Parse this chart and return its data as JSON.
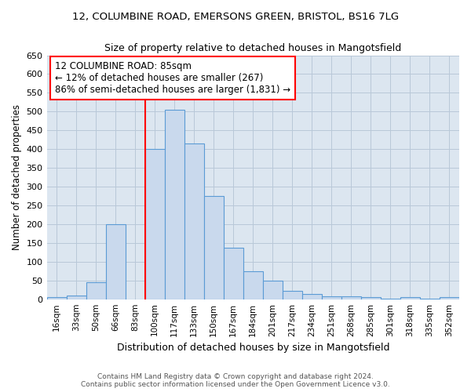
{
  "title_line1": "12, COLUMBINE ROAD, EMERSONS GREEN, BRISTOL, BS16 7LG",
  "title_line2": "Size of property relative to detached houses in Mangotsfield",
  "xlabel": "Distribution of detached houses by size in Mangotsfield",
  "ylabel": "Number of detached properties",
  "annotation_line1": "12 COLUMBINE ROAD: 85sqm",
  "annotation_line2": "← 12% of detached houses are smaller (267)",
  "annotation_line3": "86% of semi-detached houses are larger (1,831) →",
  "categories": [
    "16sqm",
    "33sqm",
    "50sqm",
    "66sqm",
    "83sqm",
    "100sqm",
    "117sqm",
    "133sqm",
    "150sqm",
    "167sqm",
    "184sqm",
    "201sqm",
    "217sqm",
    "234sqm",
    "251sqm",
    "268sqm",
    "285sqm",
    "301sqm",
    "318sqm",
    "335sqm",
    "352sqm"
  ],
  "values": [
    5,
    10,
    45,
    200,
    0,
    400,
    505,
    415,
    275,
    138,
    75,
    50,
    23,
    13,
    8,
    7,
    5,
    1,
    5,
    1,
    5
  ],
  "bar_color": "#c9d9ed",
  "bar_edge_color": "#5b9bd5",
  "vline_color": "red",
  "ylim": [
    0,
    650
  ],
  "yticks": [
    0,
    50,
    100,
    150,
    200,
    250,
    300,
    350,
    400,
    450,
    500,
    550,
    600,
    650
  ],
  "annotation_box_color": "red",
  "plot_bg_color": "#dce6f0",
  "footer": "Contains HM Land Registry data © Crown copyright and database right 2024.\nContains public sector information licensed under the Open Government Licence v3.0.",
  "grid_color": "#b8c8d8"
}
